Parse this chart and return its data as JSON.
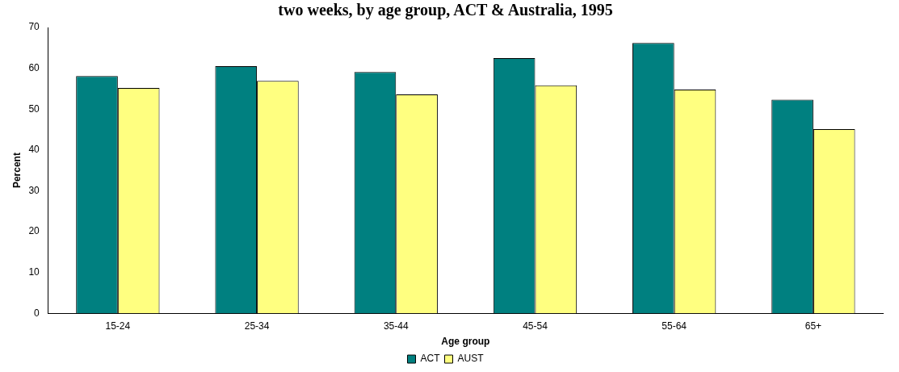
{
  "chart_data": {
    "type": "bar",
    "title": "two weeks, by age group, ACT & Australia, 1995",
    "xlabel": "Age group",
    "ylabel": "Percent",
    "categories": [
      "15-24",
      "25-34",
      "35-44",
      "45-54",
      "55-64",
      "65+"
    ],
    "series": [
      {
        "name": "ACT",
        "color": "#008080",
        "values": [
          58.1,
          60.5,
          59.1,
          62.5,
          66.2,
          52.3
        ]
      },
      {
        "name": "AUST",
        "color": "#ffff80",
        "values": [
          55.2,
          56.9,
          53.6,
          55.8,
          54.8,
          45.1
        ]
      }
    ],
    "ylim": [
      0,
      70
    ],
    "yticks": [
      0,
      10,
      20,
      30,
      40,
      50,
      60,
      70
    ],
    "grid": false,
    "legend": "bottom"
  }
}
